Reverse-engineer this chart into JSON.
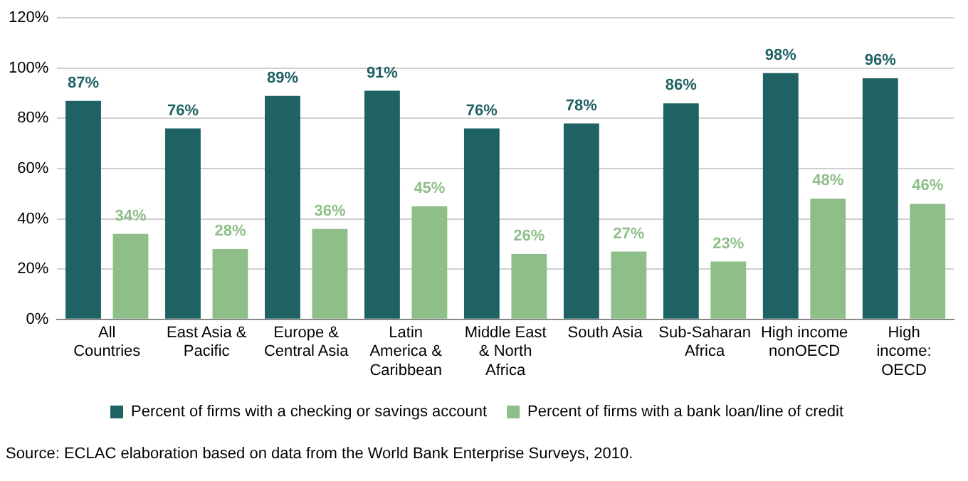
{
  "chart_data": {
    "type": "bar",
    "categories": [
      "All Countries",
      "East Asia & Pacific",
      "Europe & Central Asia",
      "Latin America & Caribbean",
      "Middle East & North Africa",
      "South Asia",
      "Sub-Saharan Africa",
      "High income nonOECD",
      "High income: OECD"
    ],
    "series": [
      {
        "name": "Percent of firms with a checking or savings account",
        "color": "#1f6264",
        "values": [
          87,
          76,
          89,
          91,
          76,
          78,
          86,
          98,
          96
        ],
        "value_labels": [
          "87%",
          "76%",
          "89%",
          "91%",
          "76%",
          "78%",
          "86%",
          "98%",
          "96%"
        ]
      },
      {
        "name": "Percent of firms with a bank loan/line of credit",
        "color": "#8fbf89",
        "values": [
          34,
          28,
          36,
          45,
          26,
          27,
          23,
          48,
          46
        ],
        "value_labels": [
          "34%",
          "28%",
          "36%",
          "45%",
          "26%",
          "27%",
          "23%",
          "48%",
          "46%"
        ]
      }
    ],
    "ylim": [
      0,
      120
    ],
    "yticks": [
      {
        "value": 0,
        "label": "0%"
      },
      {
        "value": 20,
        "label": "20%"
      },
      {
        "value": 40,
        "label": "40%"
      },
      {
        "value": 60,
        "label": "60%"
      },
      {
        "value": 80,
        "label": "80%"
      },
      {
        "value": 100,
        "label": "100%"
      },
      {
        "value": 120,
        "label": "120%"
      }
    ],
    "grid": "y",
    "legend": "bottom",
    "annotations": [
      "Source: ECLAC elaboration based on data from the World Bank Enterprise Surveys, 2010."
    ]
  }
}
